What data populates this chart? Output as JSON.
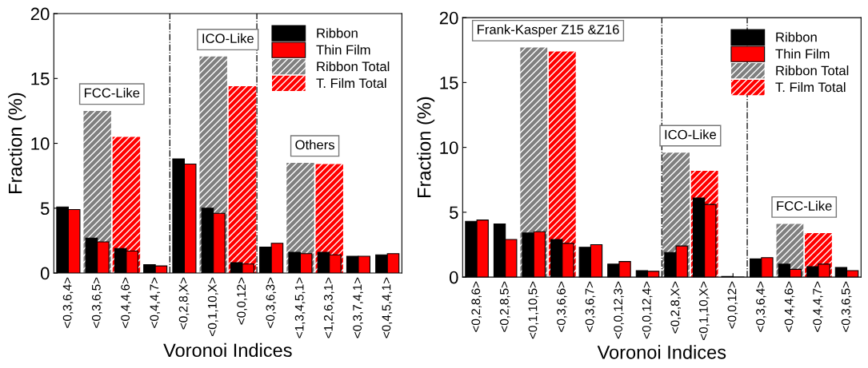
{
  "chart_data": [
    {
      "type": "bar",
      "xlabel": "Voronoi Indices",
      "ylabel": "Fraction (%)",
      "categories": [
        "<0,3,6,4>",
        "<0,3,6,5>",
        "<0,4,4,6>",
        "<0,4,4,7>",
        "<0,2,8,X>",
        "<0,1,10,X>",
        "<0,0,12>",
        "<0,3,6,3>",
        "<1,3,4,5,1>",
        "<1,2,6,3,1>",
        "<0,3,7,4,1>",
        "<0,4,5,4,1>"
      ],
      "series": [
        {
          "name": "Ribbon",
          "color": "#000000",
          "values": [
            5.1,
            2.7,
            1.9,
            0.65,
            8.8,
            5.0,
            0.8,
            2.0,
            1.6,
            1.6,
            1.3,
            1.4
          ]
        },
        {
          "name": "Thin Film",
          "color": "#ff0000",
          "values": [
            4.9,
            2.4,
            1.7,
            0.55,
            8.4,
            4.6,
            0.7,
            2.3,
            1.5,
            1.4,
            1.3,
            1.5
          ]
        },
        {
          "name": "Ribbon Total",
          "color": "#808080",
          "values": [
            null,
            12.5,
            null,
            null,
            null,
            16.7,
            null,
            null,
            8.5,
            null,
            null,
            null
          ]
        },
        {
          "name": "T. Film Total",
          "color": "#ff0000",
          "values": [
            null,
            null,
            10.5,
            null,
            null,
            null,
            14.4,
            null,
            null,
            8.4,
            null,
            null
          ]
        }
      ],
      "ylim": [
        0,
        20
      ],
      "yticks": [
        0,
        5,
        10,
        15,
        20
      ],
      "legend": "top right",
      "annotations": [
        "FCC-Like",
        "ICO-Like",
        "Others"
      ]
    },
    {
      "type": "bar",
      "xlabel": "Voronoi Indices",
      "ylabel": "Fraction (%)",
      "categories": [
        "<0,2,8,6>",
        "<0,2,8,5>",
        "<0,1,10,5>",
        "<0,3,6,6>",
        "<0,3,6,7>",
        "<0,0,12,3>",
        "<0,0,12,4>",
        "<0,2,8,X>",
        "<0,1,10,X>",
        "<0,0,12>",
        "<0,3,6,4>",
        "<0,4,4,6>",
        "<0,4,4,7>",
        "<0,3,6,5>"
      ],
      "series": [
        {
          "name": "Ribbon",
          "color": "#000000",
          "values": [
            4.3,
            4.1,
            3.4,
            2.9,
            2.3,
            1.0,
            0.5,
            1.9,
            6.1,
            0.05,
            1.4,
            1.0,
            0.8,
            0.75
          ]
        },
        {
          "name": "Thin Film",
          "color": "#ff0000",
          "values": [
            4.4,
            2.9,
            3.5,
            2.6,
            2.5,
            1.2,
            0.45,
            2.4,
            5.6,
            0.0,
            1.5,
            0.6,
            1.0,
            0.5
          ]
        },
        {
          "name": "Ribbon Total",
          "color": "#808080",
          "values": [
            null,
            null,
            17.7,
            null,
            null,
            null,
            null,
            9.6,
            null,
            null,
            null,
            4.1,
            null,
            null
          ]
        },
        {
          "name": "T. Film Total",
          "color": "#ff0000",
          "values": [
            null,
            null,
            null,
            17.4,
            null,
            null,
            null,
            null,
            8.2,
            null,
            null,
            null,
            3.4,
            null
          ]
        }
      ],
      "ylim": [
        0,
        20
      ],
      "yticks": [
        0,
        5,
        10,
        15,
        20
      ],
      "legend": "top right",
      "annotations": [
        "Frank-Kasper Z15 &Z16",
        "ICO-Like",
        "FCC-Like"
      ]
    }
  ]
}
